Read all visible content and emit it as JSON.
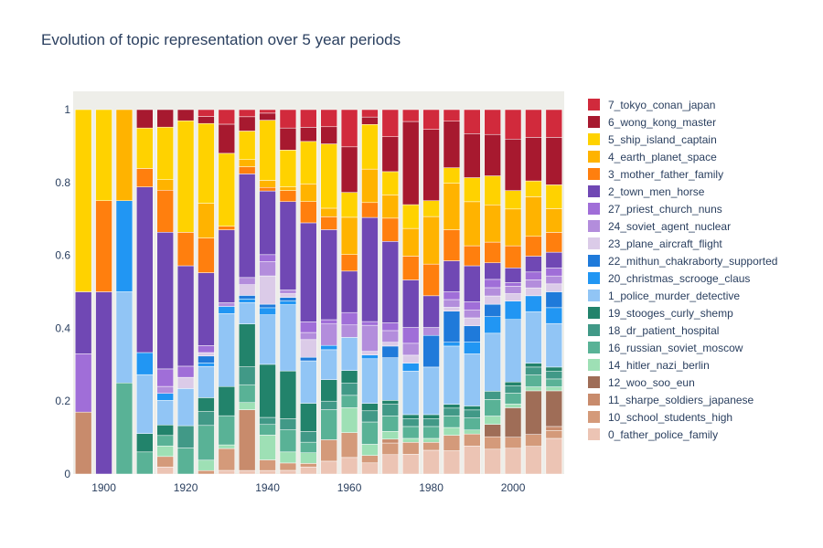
{
  "chart_data": {
    "type": "bar",
    "stacked": true,
    "normalized": true,
    "title": "Evolution of topic representation over 5 year periods",
    "xlabel": "",
    "ylabel": "",
    "ylim": [
      0,
      1
    ],
    "xlim": [
      1892.5,
      2012.5
    ],
    "bar_width": 4,
    "grid": false,
    "plot_background": "#eeeee9",
    "legend_position": "right",
    "x": [
      1895,
      1900,
      1905,
      1910,
      1915,
      1920,
      1925,
      1930,
      1935,
      1940,
      1945,
      1950,
      1955,
      1960,
      1965,
      1970,
      1975,
      1980,
      1985,
      1990,
      1995,
      2000,
      2005,
      2010
    ],
    "x_ticks": [
      1900,
      1920,
      1940,
      1960,
      1980,
      2000
    ],
    "x_tick_labels": [
      "1900",
      "1920",
      "1940",
      "1960",
      "1980",
      "2000"
    ],
    "y_ticks": [
      0,
      0.2,
      0.4,
      0.6,
      0.8,
      1
    ],
    "y_tick_labels": [
      "0",
      "0.2",
      "0.4",
      "0.6",
      "0.8",
      "1"
    ],
    "series": [
      {
        "name": "0_father_police_family",
        "color": "#ecc4b4",
        "values": [
          0,
          0,
          0,
          0,
          0.02,
          0,
          0,
          0.01,
          0.01,
          0.01,
          0.01,
          0.02,
          0.03,
          0.04,
          0.03,
          0.05,
          0.05,
          0.06,
          0.06,
          0.07,
          0.06,
          0.07,
          0.07,
          0.09
        ]
      },
      {
        "name": "10_school_students_high",
        "color": "#d49a7a",
        "values": [
          0,
          0,
          0,
          0,
          0.03,
          0,
          0.01,
          0.06,
          0,
          0.03,
          0.02,
          0.01,
          0.05,
          0.06,
          0.02,
          0.03,
          0.03,
          0.02,
          0.04,
          0.03,
          0.03,
          0.03,
          0.03,
          0.02
        ]
      },
      {
        "name": "11_sharpe_soldiers_japanese",
        "color": "#c88b6c",
        "values": [
          0.17,
          0,
          0,
          0,
          0,
          0,
          0,
          0,
          0.17,
          0,
          0,
          0,
          0,
          0,
          0,
          0.01,
          0,
          0,
          0,
          0,
          0,
          0,
          0,
          0.01
        ]
      },
      {
        "name": "12_woo_soo_eun",
        "color": "#9f6d57",
        "values": [
          0,
          0,
          0,
          0,
          0,
          0,
          0,
          0,
          0,
          0,
          0,
          0,
          0,
          0,
          0,
          0,
          0,
          0,
          0,
          0,
          0.03,
          0.08,
          0.11,
          0.09
        ]
      },
      {
        "name": "14_hitler_nazi_berlin",
        "color": "#9ee0b5",
        "values": [
          0,
          0,
          0,
          0,
          0.03,
          0,
          0.03,
          0.01,
          0.02,
          0.07,
          0.03,
          0.03,
          0,
          0.06,
          0.03,
          0.02,
          0.01,
          0.01,
          0.02,
          0.01,
          0.02,
          0.01,
          0.01,
          0.01
        ]
      },
      {
        "name": "16_russian_soviet_moscow",
        "color": "#59b296",
        "values": [
          0,
          0,
          0.25,
          0.06,
          0.03,
          0.07,
          0.1,
          0.08,
          0.05,
          0.03,
          0.06,
          0.03,
          0.07,
          0.03,
          0.06,
          0.04,
          0.03,
          0.03,
          0.03,
          0.03,
          0.04,
          0.03,
          0.03,
          0.02
        ]
      },
      {
        "name": "18_dr_patient_hospital",
        "color": "#419987",
        "values": [
          0,
          0,
          0,
          0,
          0,
          0.06,
          0.04,
          0,
          0.05,
          0.02,
          0.03,
          0.03,
          0.02,
          0.03,
          0.03,
          0.03,
          0.02,
          0.02,
          0.02,
          0.02,
          0.02,
          0.02,
          0.02,
          0.02
        ]
      },
      {
        "name": "19_stooges_curly_shemp",
        "color": "#22836b",
        "values": [
          0,
          0,
          0,
          0.05,
          0.03,
          0,
          0.04,
          0.08,
          0.12,
          0.15,
          0.13,
          0.08,
          0.05,
          0.03,
          0.02,
          0.01,
          0.01,
          0.01,
          0.01,
          0.01,
          0,
          0.01,
          0.01,
          0.01
        ]
      },
      {
        "name": "1_police_murder_detective",
        "color": "#91c5f5",
        "values": [
          0,
          0,
          0.25,
          0.16,
          0.07,
          0.1,
          0.09,
          0.2,
          0.06,
          0.14,
          0.18,
          0.12,
          0.07,
          0.08,
          0.12,
          0.11,
          0.11,
          0.12,
          0.15,
          0.13,
          0.14,
          0.17,
          0.13,
          0.11
        ]
      },
      {
        "name": "20_christmas_scrooge_claus",
        "color": "#2196f3",
        "values": [
          0,
          0,
          0.25,
          0.06,
          0.02,
          0,
          0.01,
          0.02,
          0.01,
          0.02,
          0.01,
          0,
          0.01,
          0,
          0.01,
          0,
          0.02,
          0,
          0.01,
          0.03,
          0.04,
          0.05,
          0.04,
          0.04
        ]
      },
      {
        "name": "22_mithun_chakraborty_supported",
        "color": "#1f7ada",
        "values": [
          0,
          0,
          0,
          0,
          0,
          0,
          0.02,
          0,
          0.01,
          0.01,
          0.01,
          0.01,
          0,
          0,
          0,
          0.03,
          0,
          0.08,
          0.08,
          0.04,
          0.03,
          0,
          0,
          0.04
        ]
      },
      {
        "name": "23_plane_aircraft_flight",
        "color": "#dbcbe8",
        "values": [
          0,
          0,
          0,
          0,
          0,
          0.03,
          0.01,
          0,
          0.03,
          0.08,
          0.01,
          0.05,
          0,
          0,
          0.01,
          0.01,
          0.02,
          0,
          0.01,
          0.02,
          0.02,
          0.02,
          0.02,
          0.02
        ]
      },
      {
        "name": "24_soviet_agent_nuclear",
        "color": "#b38ddc",
        "values": [
          0,
          0,
          0,
          0,
          0.02,
          0,
          0,
          0.01,
          0.02,
          0.04,
          0.01,
          0.02,
          0.05,
          0.03,
          0.07,
          0.03,
          0.03,
          0.02,
          0.02,
          0.02,
          0.02,
          0.02,
          0.02,
          0.02
        ]
      },
      {
        "name": "27_priest_church_nuns",
        "color": "#a06ed8",
        "values": [
          0.16,
          0,
          0,
          0,
          0.05,
          0.03,
          0.02,
          0,
          0,
          0.02,
          0,
          0.03,
          0.01,
          0.03,
          0.01,
          0.02,
          0.04,
          0,
          0.02,
          0.02,
          0.02,
          0.01,
          0.02,
          0.02
        ]
      },
      {
        "name": "2_town_men_horse",
        "color": "#7048b4",
        "values": [
          0.17,
          0.5,
          0,
          0.45,
          0.39,
          0.27,
          0.21,
          0.2,
          0.29,
          0.18,
          0.24,
          0.28,
          0.21,
          0.1,
          0.28,
          0.21,
          0.12,
          0.08,
          0.08,
          0.09,
          0.04,
          0.04,
          0.04,
          0.04
        ]
      },
      {
        "name": "3_mother_father_family",
        "color": "#ff7f0e",
        "values": [
          0,
          0.25,
          0,
          0.05,
          0.12,
          0.09,
          0.1,
          0.01,
          0.02,
          0.01,
          0.03,
          0.06,
          0.03,
          0.04,
          0.04,
          0.06,
          0.06,
          0.08,
          0.08,
          0.05,
          0.05,
          0.06,
          0.05,
          0.05
        ]
      },
      {
        "name": "4_earth_planet_space",
        "color": "#ffb300",
        "values": [
          0,
          0,
          0.25,
          0,
          0.03,
          0,
          0.1,
          0,
          0.02,
          0.02,
          0.01,
          0.05,
          0.02,
          0.09,
          0.09,
          0.06,
          0.07,
          0.12,
          0.12,
          0.11,
          0.09,
          0.1,
          0.1,
          0.06
        ]
      },
      {
        "name": "5_ship_island_captain",
        "color": "#ffd200",
        "values": [
          0.5,
          0.25,
          0,
          0.11,
          0.15,
          0.3,
          0.23,
          0.2,
          0.08,
          0.17,
          0.1,
          0.12,
          0.15,
          0.06,
          0.12,
          0.06,
          0.06,
          0.04,
          0.04,
          0.06,
          0.07,
          0.05,
          0.04,
          0.06
        ]
      },
      {
        "name": "6_wong_kong_master",
        "color": "#a7192f",
        "values": [
          0,
          0,
          0,
          0.05,
          0.05,
          0.03,
          0.02,
          0.08,
          0.04,
          0.02,
          0.06,
          0.04,
          0.04,
          0.11,
          0.02,
          0.09,
          0.21,
          0.18,
          0.12,
          0.11,
          0.1,
          0.14,
          0.11,
          0.12
        ]
      },
      {
        "name": "7_tokyo_conan_japan",
        "color": "#d12a3c",
        "values": [
          0,
          0,
          0,
          0,
          0,
          0,
          0.02,
          0.04,
          0.02,
          0.01,
          0.05,
          0.05,
          0.04,
          0.09,
          0.02,
          0.07,
          0.03,
          0.05,
          0.03,
          0.06,
          0.06,
          0.08,
          0.07,
          0.07
        ]
      }
    ]
  }
}
